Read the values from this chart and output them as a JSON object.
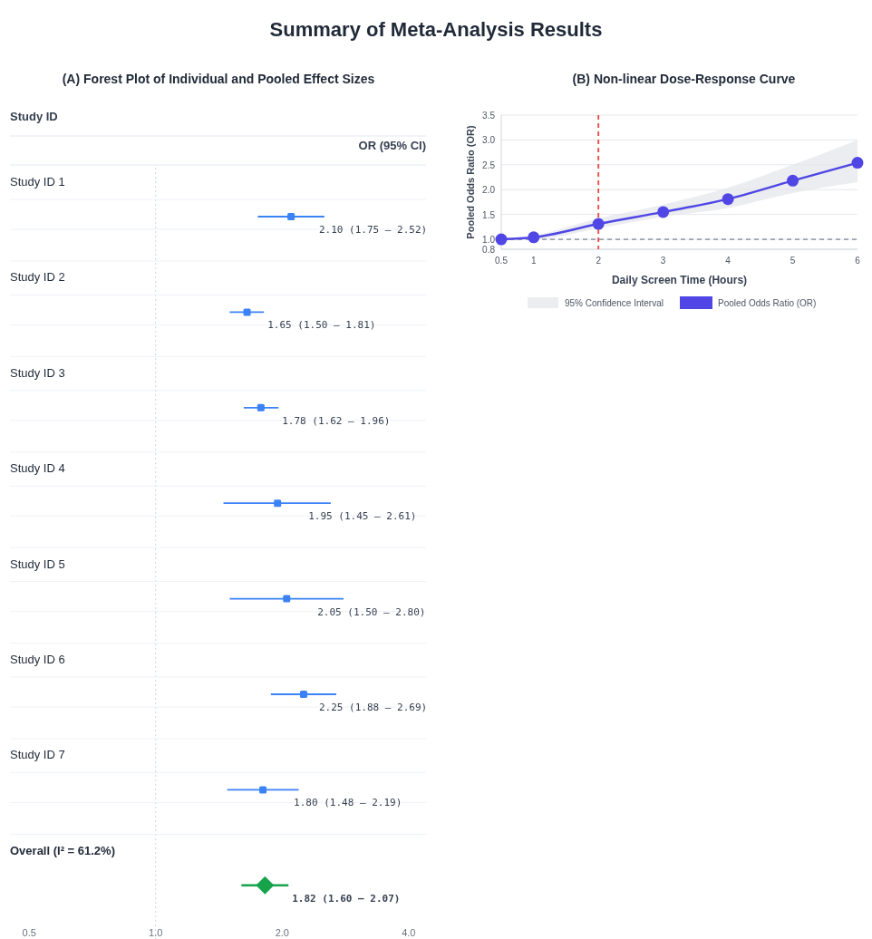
{
  "chart_data": [
    {
      "type": "scatter",
      "title": "Summary of Meta-Analysis Results",
      "subtitle": "(A) Forest Plot of Individual and Pooled Effect Sizes",
      "ylabel": "Study ID",
      "annotations": [
        "OR (95% CI)"
      ],
      "orientation": "horizontal",
      "log": "x",
      "categories": [
        "Study ID 1",
        "Study ID 2",
        "Study ID 3",
        "Study ID 4",
        "Study ID 5",
        "Study ID 6",
        "Study ID 7",
        "Overall (I² = 61.2%)"
      ],
      "series": [
        {
          "color": "#3b82f6",
          "marker": "square",
          "values": [
            2.1,
            1.65,
            1.78,
            1.95,
            2.05,
            2.25,
            1.8,
            null
          ],
          "errors": [
            [
              1.75,
              2.52
            ],
            [
              1.5,
              1.81
            ],
            [
              1.62,
              1.96
            ],
            [
              1.45,
              2.61
            ],
            [
              1.5,
              2.8
            ],
            [
              1.88,
              2.69
            ],
            [
              1.48,
              2.19
            ],
            null
          ],
          "value_labels": [
            "2.10 (1.75 – 2.52)",
            "1.65 (1.50 – 1.81)",
            "1.78 (1.62 – 1.96)",
            "1.95 (1.45 – 2.61)",
            "2.05 (1.50 – 2.80)",
            "2.25 (1.88 – 2.69)",
            "1.80 (1.48 – 2.19)",
            null
          ]
        },
        {
          "color": "#16a34a",
          "marker": "diamond",
          "values": [
            null,
            null,
            null,
            null,
            null,
            null,
            null,
            1.82
          ],
          "errors": [
            null,
            null,
            null,
            null,
            null,
            null,
            null,
            [
              1.6,
              2.07
            ]
          ],
          "value_labels": [
            null,
            null,
            null,
            null,
            null,
            null,
            null,
            "1.82 (1.60 – 2.07)"
          ]
        }
      ],
      "xlim": [
        0.45,
        4.4
      ],
      "xticks": [
        {
          "value": 0.5,
          "label": "0.5"
        },
        {
          "value": 1,
          "label": "1.0"
        },
        {
          "value": 2,
          "label": "2.0"
        },
        {
          "value": 4,
          "label": "4.0"
        }
      ],
      "ref_lines": [
        {
          "axis": "x",
          "value": 1,
          "color": "#cbd5e1",
          "line_style": "dotted"
        }
      ],
      "grid": "y",
      "legend": false
    },
    {
      "type": "line",
      "title": "(B) Non-linear Dose-Response Curve",
      "xlabel": "Daily Screen Time (Hours)",
      "ylabel": "Pooled Odds Ratio (OR)",
      "x": [
        0.5,
        1,
        2,
        3,
        4,
        5,
        6
      ],
      "series": [
        {
          "name": "Pooled Odds Ratio (OR)",
          "color": "#4f46e5",
          "values": [
            1.0,
            1.04,
            1.31,
            1.55,
            1.81,
            2.18,
            2.54
          ],
          "lower": [
            1.0,
            1.0,
            1.22,
            1.45,
            1.63,
            1.93,
            2.15
          ],
          "upper": [
            1.0,
            1.08,
            1.42,
            1.7,
            2.04,
            2.5,
            3.0
          ]
        }
      ],
      "annotations": [
        "95% Confidence Interval"
      ],
      "xlim": [
        0.5,
        6
      ],
      "xticks": [
        0.5,
        1,
        2,
        3,
        4,
        5,
        6
      ],
      "ylim": [
        0.8,
        3.5
      ],
      "yticks": [
        0.8,
        {
          "value": 1,
          "label": "1.0"
        },
        1.5,
        {
          "value": 2,
          "label": "2.0"
        },
        2.5,
        {
          "value": 3,
          "label": "3.0"
        },
        3.5
      ],
      "ref_lines": [
        {
          "axis": "x",
          "value": 2,
          "color": "#ef4444",
          "line_style": "dashed"
        },
        {
          "axis": "y",
          "value": 1,
          "color": "#9ca3af",
          "line_style": "dashed"
        }
      ],
      "grid": "y",
      "marker": "circle",
      "line_style": "solid",
      "legend": "bottom"
    }
  ]
}
